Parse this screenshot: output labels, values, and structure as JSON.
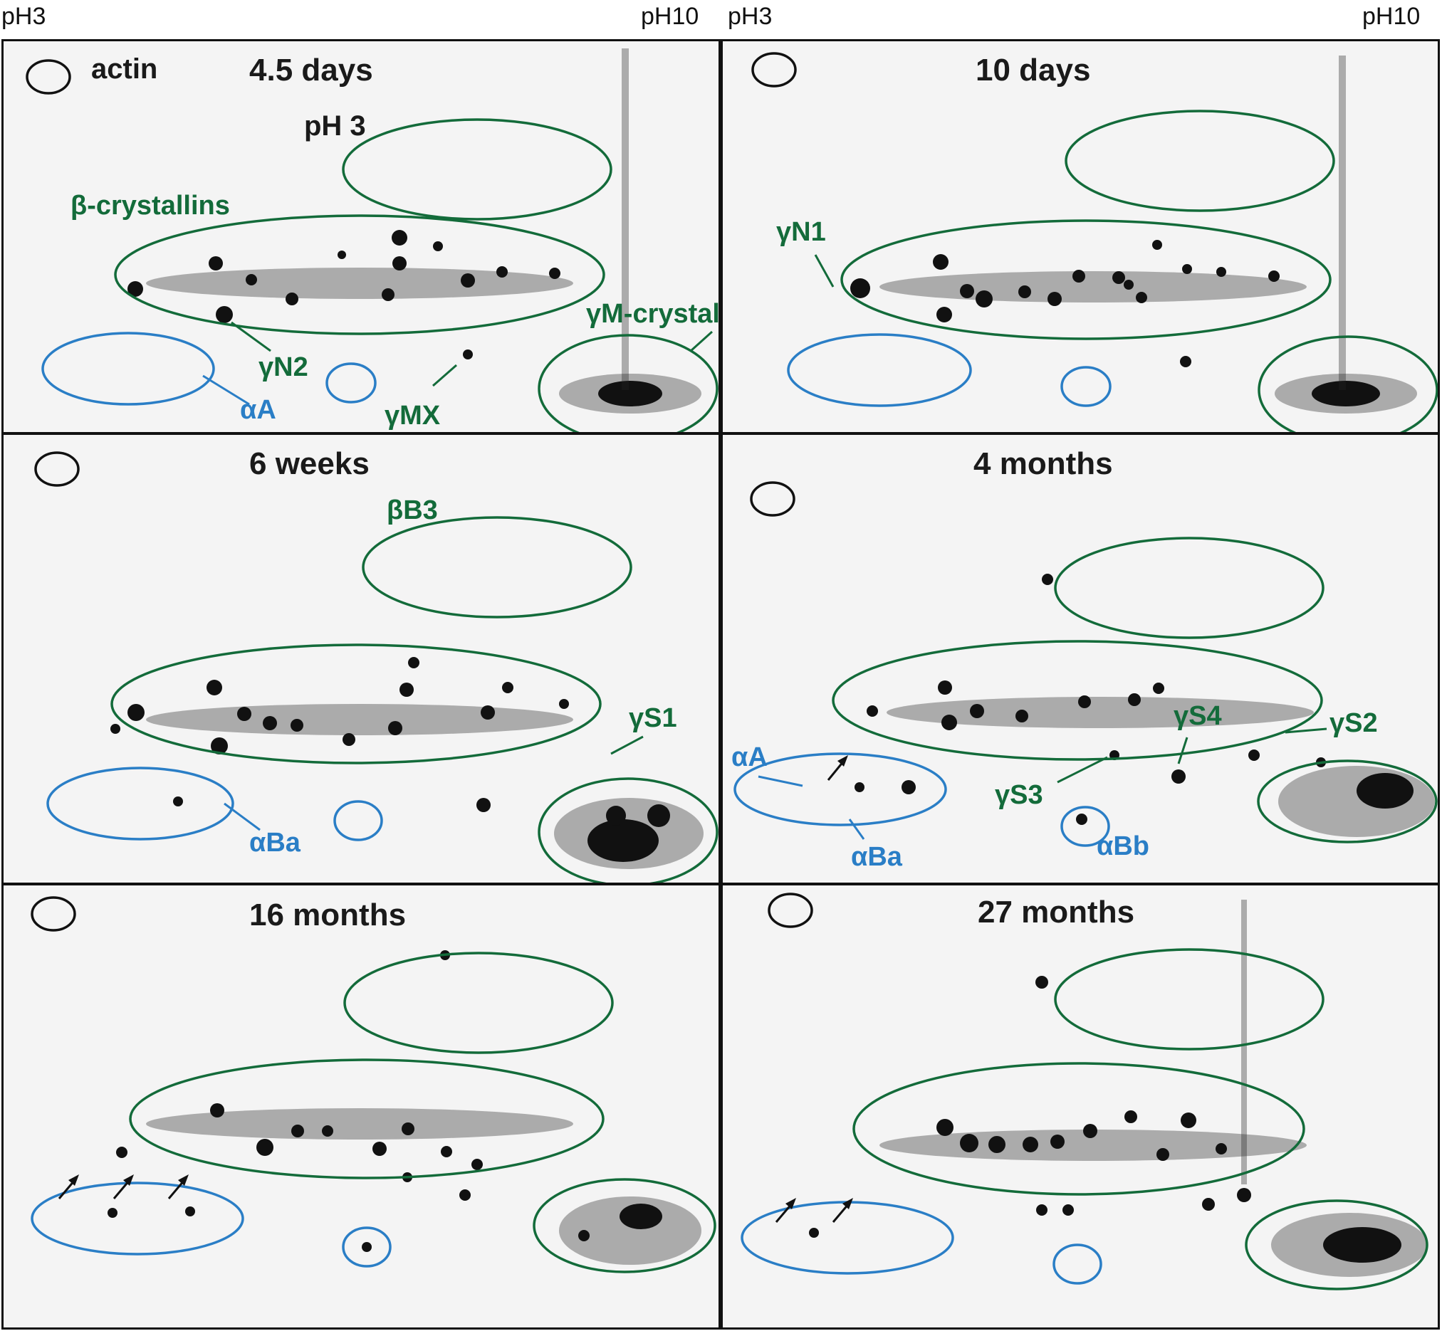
{
  "axis": {
    "left": "pH3",
    "right": "pH10"
  },
  "panels": [
    {
      "title": "4.5 days",
      "labels": {
        "actin": "actin",
        "ph": "pH 3",
        "beta": "β-crystallins",
        "gammaM": "γM-crystallins",
        "gN2": "γN2",
        "aA": "αA",
        "gMX": "γMX"
      }
    },
    {
      "title": "10 days",
      "labels": {
        "gN1": "γN1"
      }
    },
    {
      "title": "6 weeks",
      "labels": {
        "bB3": "βB3",
        "gS1": "γS1",
        "aBa": "αBa"
      }
    },
    {
      "title": "4 months",
      "labels": {
        "aA": "αA",
        "aBa": "αBa",
        "aBb": "αBb",
        "gS2": "γS2",
        "gS3": "γS3",
        "gS4": "γS4"
      }
    },
    {
      "title": "16 months",
      "labels": {}
    },
    {
      "title": "27 months",
      "labels": {}
    }
  ],
  "colors": {
    "green": "#136b3a",
    "blue": "#2a7ec6",
    "black": "#111111"
  }
}
